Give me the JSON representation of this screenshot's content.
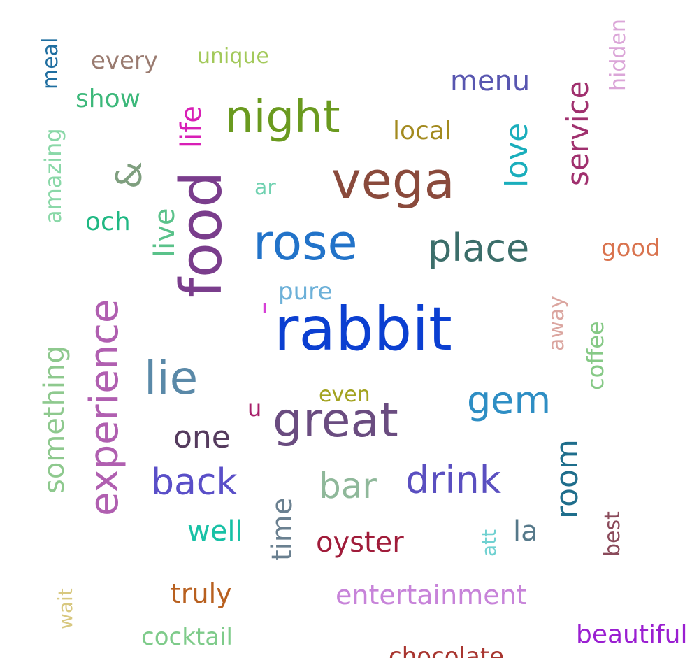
{
  "words": [
    {
      "text": "rabbit",
      "color": "#0b3fd1"
    },
    {
      "text": "'",
      "color": "#d63fd6"
    },
    {
      "text": "vega",
      "color": "#8a4a3c"
    },
    {
      "text": "food",
      "color": "#7a3d8c"
    },
    {
      "text": "rose",
      "color": "#2273c9"
    },
    {
      "text": "great",
      "color": "#6a4c80"
    },
    {
      "text": "night",
      "color": "#6a9a1f"
    },
    {
      "text": "experience",
      "color": "#b05fb0"
    },
    {
      "text": "lie",
      "color": "#5a89a8"
    },
    {
      "text": "place",
      "color": "#3c6e6a"
    },
    {
      "text": "gem",
      "color": "#2e8ec4"
    },
    {
      "text": "drink",
      "color": "#5a4fc0"
    },
    {
      "text": "back",
      "color": "#5a4fc8"
    },
    {
      "text": "bar",
      "color": "#8fb89a"
    },
    {
      "text": "service",
      "color": "#a0306e"
    },
    {
      "text": "room",
      "color": "#1f6e8c"
    },
    {
      "text": "love",
      "color": "#1aaebc"
    },
    {
      "text": "something",
      "color": "#8ec98e"
    },
    {
      "text": "one",
      "color": "#553b5e"
    },
    {
      "text": "&",
      "color": "#7f9f7f"
    },
    {
      "text": "menu",
      "color": "#5856b0"
    },
    {
      "text": "oyster",
      "color": "#a01c3a"
    },
    {
      "text": "time",
      "color": "#6a8090"
    },
    {
      "text": "entertainment",
      "color": "#c783d9"
    },
    {
      "text": "life",
      "color": "#d81fb6"
    },
    {
      "text": "well",
      "color": "#18c1a6"
    },
    {
      "text": "live",
      "color": "#5ac28a"
    },
    {
      "text": "good",
      "color": "#d9734e"
    },
    {
      "text": "coffee",
      "color": "#86c986"
    },
    {
      "text": "local",
      "color": "#a38a1f"
    },
    {
      "text": "amazing",
      "color": "#8ad8a8"
    },
    {
      "text": "la",
      "color": "#56798a"
    },
    {
      "text": "truly",
      "color": "#b8601f"
    },
    {
      "text": "beautiful",
      "color": "#9a1fd1"
    },
    {
      "text": "och",
      "color": "#1fb883"
    },
    {
      "text": "pure",
      "color": "#6cb0d8"
    },
    {
      "text": "show",
      "color": "#3cb87a"
    },
    {
      "text": "every",
      "color": "#9a7b70"
    },
    {
      "text": "cocktail",
      "color": "#7ecb8a"
    },
    {
      "text": "chocolate",
      "color": "#a8352f"
    },
    {
      "text": "unique",
      "color": "#a3c95a"
    },
    {
      "text": "away",
      "color": "#dba6a0"
    },
    {
      "text": "even",
      "color": "#a3a31f"
    },
    {
      "text": "ar",
      "color": "#6fd1b0"
    },
    {
      "text": "u",
      "color": "#a81f6a"
    },
    {
      "text": "meal",
      "color": "#1f6ea0"
    },
    {
      "text": "hidden",
      "color": "#dba6d8"
    },
    {
      "text": "best",
      "color": "#8a4a5a"
    },
    {
      "text": "wait",
      "color": "#d8c880"
    },
    {
      "text": "att",
      "color": "#6fd1d1"
    }
  ]
}
